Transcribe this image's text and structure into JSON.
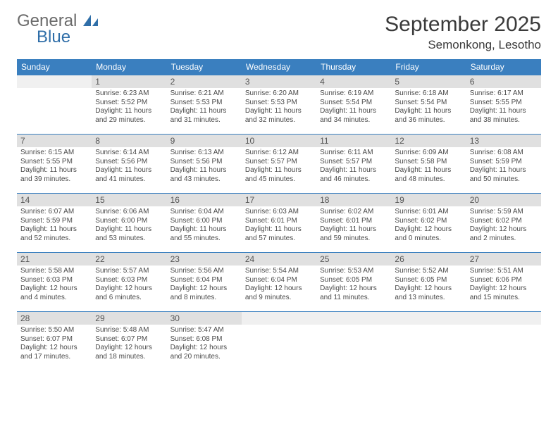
{
  "logo": {
    "general": "General",
    "blue": "Blue"
  },
  "title": "September 2025",
  "location": "Semonkong, Lesotho",
  "colors": {
    "header_bg": "#3a7fbf",
    "header_text": "#ffffff",
    "daynum_bg": "#e0e0e0",
    "row_border": "#3a7fbf",
    "logo_general": "#6b6b6b",
    "logo_blue": "#2f6ea8",
    "body_text": "#4a4a4a"
  },
  "weekdays": [
    "Sunday",
    "Monday",
    "Tuesday",
    "Wednesday",
    "Thursday",
    "Friday",
    "Saturday"
  ],
  "weeks": [
    [
      null,
      {
        "n": "1",
        "sr": "Sunrise: 6:23 AM",
        "ss": "Sunset: 5:52 PM",
        "d1": "Daylight: 11 hours",
        "d2": "and 29 minutes."
      },
      {
        "n": "2",
        "sr": "Sunrise: 6:21 AM",
        "ss": "Sunset: 5:53 PM",
        "d1": "Daylight: 11 hours",
        "d2": "and 31 minutes."
      },
      {
        "n": "3",
        "sr": "Sunrise: 6:20 AM",
        "ss": "Sunset: 5:53 PM",
        "d1": "Daylight: 11 hours",
        "d2": "and 32 minutes."
      },
      {
        "n": "4",
        "sr": "Sunrise: 6:19 AM",
        "ss": "Sunset: 5:54 PM",
        "d1": "Daylight: 11 hours",
        "d2": "and 34 minutes."
      },
      {
        "n": "5",
        "sr": "Sunrise: 6:18 AM",
        "ss": "Sunset: 5:54 PM",
        "d1": "Daylight: 11 hours",
        "d2": "and 36 minutes."
      },
      {
        "n": "6",
        "sr": "Sunrise: 6:17 AM",
        "ss": "Sunset: 5:55 PM",
        "d1": "Daylight: 11 hours",
        "d2": "and 38 minutes."
      }
    ],
    [
      {
        "n": "7",
        "sr": "Sunrise: 6:15 AM",
        "ss": "Sunset: 5:55 PM",
        "d1": "Daylight: 11 hours",
        "d2": "and 39 minutes."
      },
      {
        "n": "8",
        "sr": "Sunrise: 6:14 AM",
        "ss": "Sunset: 5:56 PM",
        "d1": "Daylight: 11 hours",
        "d2": "and 41 minutes."
      },
      {
        "n": "9",
        "sr": "Sunrise: 6:13 AM",
        "ss": "Sunset: 5:56 PM",
        "d1": "Daylight: 11 hours",
        "d2": "and 43 minutes."
      },
      {
        "n": "10",
        "sr": "Sunrise: 6:12 AM",
        "ss": "Sunset: 5:57 PM",
        "d1": "Daylight: 11 hours",
        "d2": "and 45 minutes."
      },
      {
        "n": "11",
        "sr": "Sunrise: 6:11 AM",
        "ss": "Sunset: 5:57 PM",
        "d1": "Daylight: 11 hours",
        "d2": "and 46 minutes."
      },
      {
        "n": "12",
        "sr": "Sunrise: 6:09 AM",
        "ss": "Sunset: 5:58 PM",
        "d1": "Daylight: 11 hours",
        "d2": "and 48 minutes."
      },
      {
        "n": "13",
        "sr": "Sunrise: 6:08 AM",
        "ss": "Sunset: 5:59 PM",
        "d1": "Daylight: 11 hours",
        "d2": "and 50 minutes."
      }
    ],
    [
      {
        "n": "14",
        "sr": "Sunrise: 6:07 AM",
        "ss": "Sunset: 5:59 PM",
        "d1": "Daylight: 11 hours",
        "d2": "and 52 minutes."
      },
      {
        "n": "15",
        "sr": "Sunrise: 6:06 AM",
        "ss": "Sunset: 6:00 PM",
        "d1": "Daylight: 11 hours",
        "d2": "and 53 minutes."
      },
      {
        "n": "16",
        "sr": "Sunrise: 6:04 AM",
        "ss": "Sunset: 6:00 PM",
        "d1": "Daylight: 11 hours",
        "d2": "and 55 minutes."
      },
      {
        "n": "17",
        "sr": "Sunrise: 6:03 AM",
        "ss": "Sunset: 6:01 PM",
        "d1": "Daylight: 11 hours",
        "d2": "and 57 minutes."
      },
      {
        "n": "18",
        "sr": "Sunrise: 6:02 AM",
        "ss": "Sunset: 6:01 PM",
        "d1": "Daylight: 11 hours",
        "d2": "and 59 minutes."
      },
      {
        "n": "19",
        "sr": "Sunrise: 6:01 AM",
        "ss": "Sunset: 6:02 PM",
        "d1": "Daylight: 12 hours",
        "d2": "and 0 minutes."
      },
      {
        "n": "20",
        "sr": "Sunrise: 5:59 AM",
        "ss": "Sunset: 6:02 PM",
        "d1": "Daylight: 12 hours",
        "d2": "and 2 minutes."
      }
    ],
    [
      {
        "n": "21",
        "sr": "Sunrise: 5:58 AM",
        "ss": "Sunset: 6:03 PM",
        "d1": "Daylight: 12 hours",
        "d2": "and 4 minutes."
      },
      {
        "n": "22",
        "sr": "Sunrise: 5:57 AM",
        "ss": "Sunset: 6:03 PM",
        "d1": "Daylight: 12 hours",
        "d2": "and 6 minutes."
      },
      {
        "n": "23",
        "sr": "Sunrise: 5:56 AM",
        "ss": "Sunset: 6:04 PM",
        "d1": "Daylight: 12 hours",
        "d2": "and 8 minutes."
      },
      {
        "n": "24",
        "sr": "Sunrise: 5:54 AM",
        "ss": "Sunset: 6:04 PM",
        "d1": "Daylight: 12 hours",
        "d2": "and 9 minutes."
      },
      {
        "n": "25",
        "sr": "Sunrise: 5:53 AM",
        "ss": "Sunset: 6:05 PM",
        "d1": "Daylight: 12 hours",
        "d2": "and 11 minutes."
      },
      {
        "n": "26",
        "sr": "Sunrise: 5:52 AM",
        "ss": "Sunset: 6:05 PM",
        "d1": "Daylight: 12 hours",
        "d2": "and 13 minutes."
      },
      {
        "n": "27",
        "sr": "Sunrise: 5:51 AM",
        "ss": "Sunset: 6:06 PM",
        "d1": "Daylight: 12 hours",
        "d2": "and 15 minutes."
      }
    ],
    [
      {
        "n": "28",
        "sr": "Sunrise: 5:50 AM",
        "ss": "Sunset: 6:07 PM",
        "d1": "Daylight: 12 hours",
        "d2": "and 17 minutes."
      },
      {
        "n": "29",
        "sr": "Sunrise: 5:48 AM",
        "ss": "Sunset: 6:07 PM",
        "d1": "Daylight: 12 hours",
        "d2": "and 18 minutes."
      },
      {
        "n": "30",
        "sr": "Sunrise: 5:47 AM",
        "ss": "Sunset: 6:08 PM",
        "d1": "Daylight: 12 hours",
        "d2": "and 20 minutes."
      },
      null,
      null,
      null,
      null
    ]
  ]
}
